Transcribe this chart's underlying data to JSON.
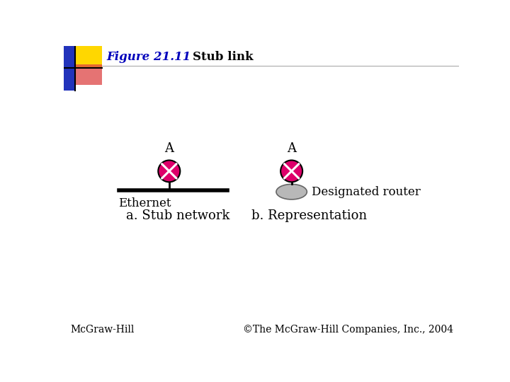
{
  "title_figure": "Figure 21.11",
  "title_stub": "    Stub link",
  "title_color": "#0000bb",
  "background_color": "#ffffff",
  "label_a_left": "A",
  "label_a_right": "A",
  "ethernet_label": "Ethernet",
  "sub_a": "a. Stub network",
  "sub_b": "b. Representation",
  "designated_label": "Designated router",
  "footer_left": "McGraw-Hill",
  "footer_right": "©The McGraw-Hill Companies, Inc., 2004",
  "router_color": "#dd006a",
  "router_outline": "#000000",
  "disk_color": "#b8b8b8",
  "disk_outline": "#666666",
  "line_color": "#000000",
  "header_line_color": "#aaaaaa",
  "yellow_color": "#FFD700",
  "red_color": "#dd4444",
  "blue_color": "#2233bb"
}
